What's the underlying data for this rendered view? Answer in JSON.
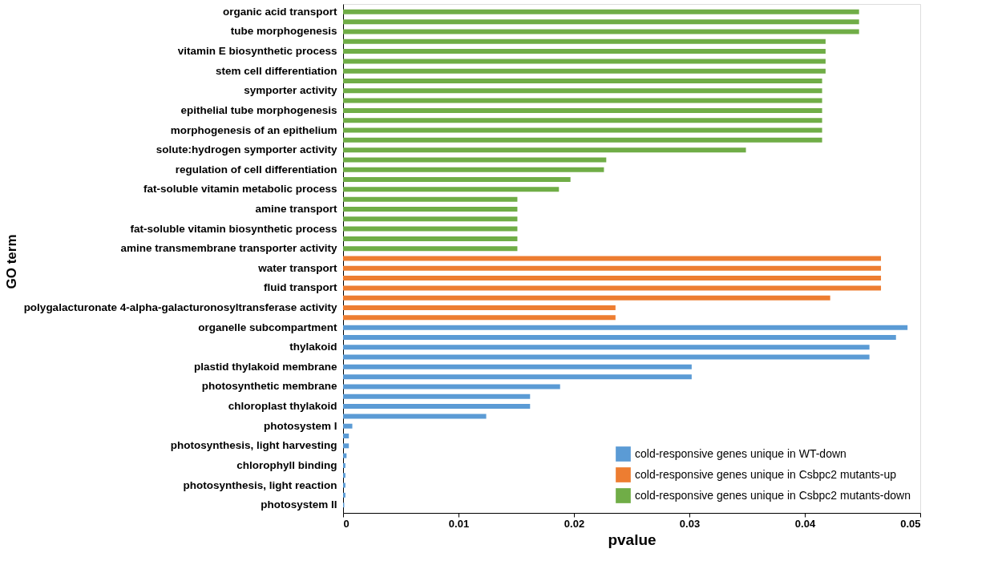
{
  "chart_data": {
    "type": "bar",
    "orientation": "horizontal",
    "xlabel": "pvalue",
    "ylabel": "GO term",
    "categories": [
      "organic acid transport",
      null,
      "tube morphogenesis",
      null,
      "vitamin E biosynthetic process",
      null,
      "stem cell differentiation",
      null,
      "symporter activity",
      null,
      "epithelial tube morphogenesis",
      null,
      "morphogenesis of an epithelium",
      null,
      "solute:hydrogen symporter activity",
      null,
      "regulation of cell differentiation",
      null,
      "fat-soluble vitamin metabolic process",
      null,
      "amine transport",
      null,
      "fat-soluble vitamin biosynthetic process",
      null,
      "amine transmembrane transporter activity",
      null,
      "water transport",
      null,
      "fluid transport",
      null,
      "polygalacturonate 4-alpha-galacturonosyltransferase activity",
      null,
      "organelle subcompartment",
      null,
      "thylakoid",
      null,
      "plastid thylakoid membrane",
      null,
      "photosynthetic membrane",
      null,
      "chloroplast thylakoid",
      null,
      "photosystem I",
      null,
      "photosynthesis, light harvesting",
      null,
      "chlorophyll binding",
      null,
      "photosynthesis, light reaction",
      null,
      "photosystem II"
    ],
    "series": [
      {
        "name": "cold-responsive genes unique in WT-down",
        "color": "#5b9bd5",
        "values": [
          null,
          null,
          null,
          null,
          null,
          null,
          null,
          null,
          null,
          null,
          null,
          null,
          null,
          null,
          null,
          null,
          null,
          null,
          null,
          null,
          null,
          null,
          null,
          null,
          null,
          null,
          null,
          null,
          null,
          null,
          null,
          null,
          0.0489,
          0.0479,
          0.0456,
          0.0456,
          0.0302,
          0.0302,
          0.0188,
          0.0162,
          0.0162,
          0.0124,
          0.0008,
          0.0005,
          0.0005,
          0.0003,
          0.0002,
          0.0002,
          0.0002,
          0.0002,
          0.0001
        ]
      },
      {
        "name": "cold-responsive genes unique in Csbpc2 mutants-up",
        "color": "#ed7d31",
        "values": [
          null,
          null,
          null,
          null,
          null,
          null,
          null,
          null,
          null,
          null,
          null,
          null,
          null,
          null,
          null,
          null,
          null,
          null,
          null,
          null,
          null,
          null,
          null,
          null,
          null,
          0.0466,
          0.0466,
          0.0466,
          0.0466,
          0.0422,
          0.0236,
          0.0236,
          null,
          null,
          null,
          null,
          null,
          null,
          null,
          null,
          null,
          null,
          null,
          null,
          null,
          null,
          null,
          null,
          null,
          null,
          null
        ]
      },
      {
        "name": "cold-responsive genes unique in Csbpc2 mutants-down",
        "color": "#70ad47",
        "values": [
          0.0447,
          0.0447,
          0.0447,
          0.0418,
          0.0418,
          0.0418,
          0.0418,
          0.0415,
          0.0415,
          0.0415,
          0.0415,
          0.0415,
          0.0415,
          0.0415,
          0.0349,
          0.0228,
          0.0226,
          0.0197,
          0.0187,
          0.0151,
          0.0151,
          0.0151,
          0.0151,
          0.0151,
          0.0151,
          null,
          null,
          null,
          null,
          null,
          null,
          null,
          null,
          null,
          null,
          null,
          null,
          null,
          null,
          null,
          null,
          null,
          null,
          null,
          null,
          null,
          null,
          null,
          null,
          null,
          null
        ]
      }
    ],
    "xlim": [
      0,
      0.05
    ],
    "xticks": [
      0,
      0.01,
      0.02,
      0.03,
      0.04,
      0.05
    ],
    "grid": false,
    "legend": "bottom right"
  }
}
